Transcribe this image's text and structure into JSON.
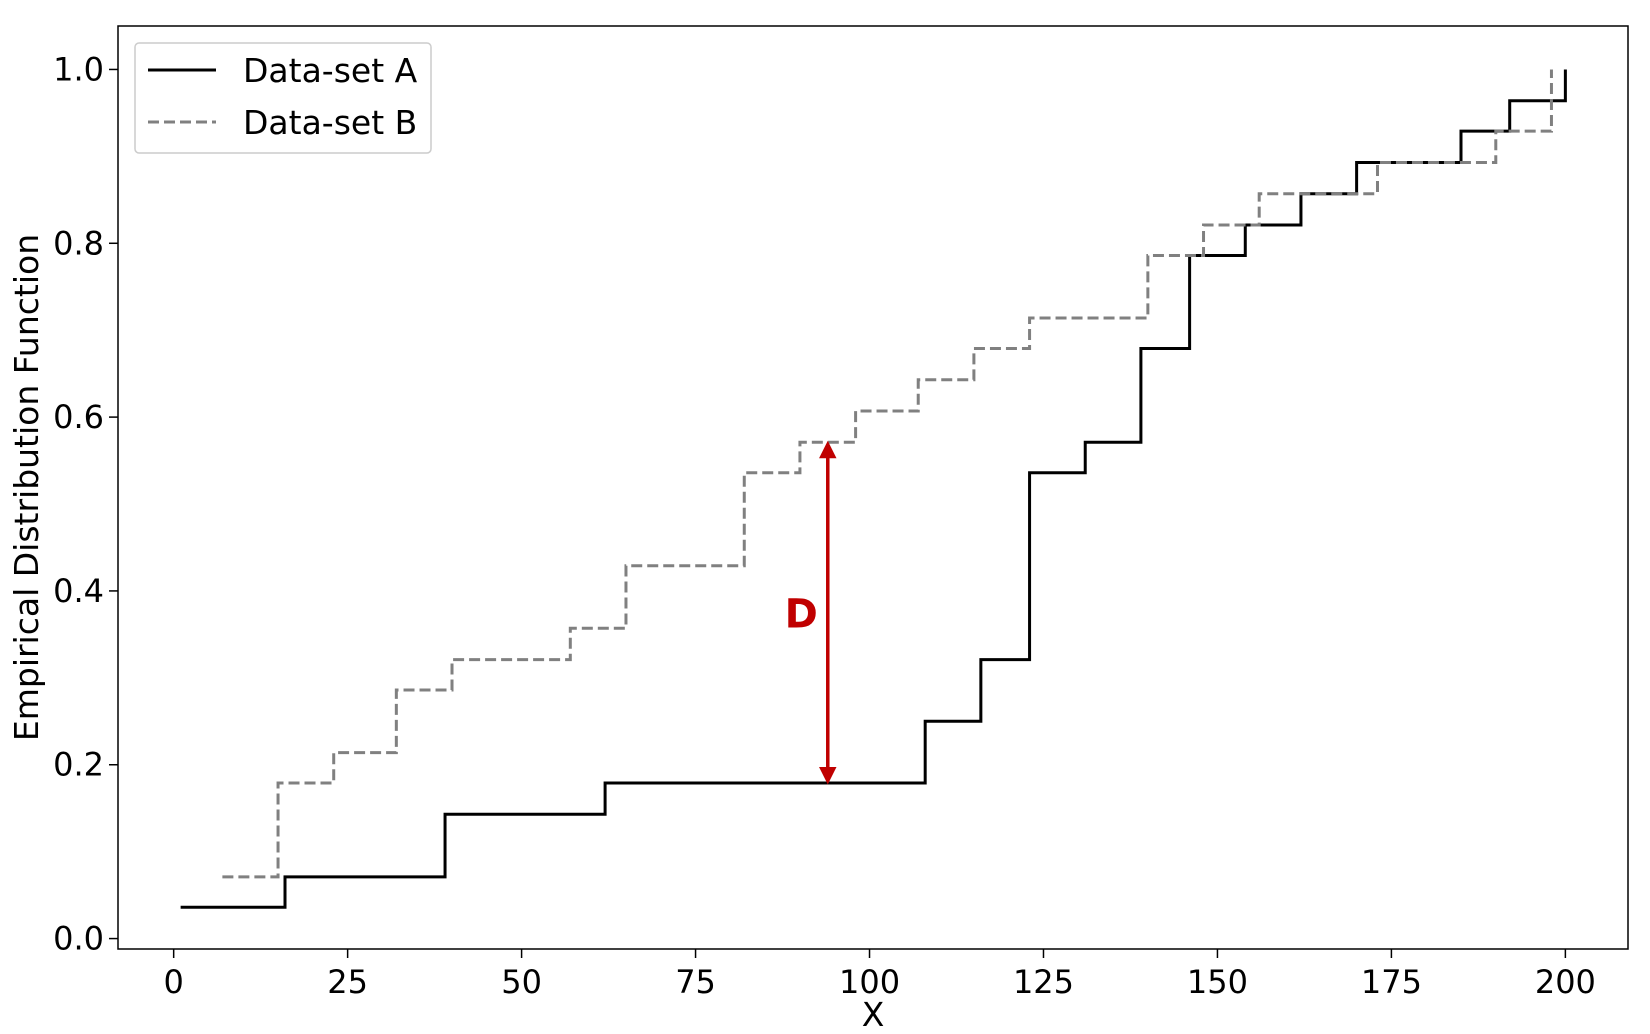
{
  "chart_data": {
    "type": "line",
    "step": "post",
    "xlabel": "X",
    "ylabel": "Empirical Distribution Function",
    "xlim": [
      -8,
      209
    ],
    "ylim": [
      -0.012,
      1.05
    ],
    "xticks": [
      0,
      25,
      50,
      75,
      100,
      125,
      150,
      175,
      200
    ],
    "yticks": [
      0.0,
      0.2,
      0.4,
      0.6,
      0.8,
      1.0
    ],
    "grid": false,
    "legend_position": "top-left",
    "series": [
      {
        "name": "Data-set A",
        "color": "#000000",
        "linestyle": "solid",
        "x": [
          1,
          16,
          39,
          62,
          108,
          116,
          123,
          131,
          139,
          146,
          154,
          162,
          170,
          185,
          192,
          200
        ],
        "y": [
          0.036,
          0.071,
          0.143,
          0.179,
          0.25,
          0.321,
          0.536,
          0.571,
          0.679,
          0.786,
          0.821,
          0.857,
          0.893,
          0.929,
          0.964,
          1.0
        ]
      },
      {
        "name": "Data-set B",
        "color": "#808080",
        "linestyle": "dashed",
        "x": [
          7,
          15,
          23,
          32,
          40,
          57,
          65,
          82,
          90,
          98,
          107,
          115,
          123,
          140,
          148,
          156,
          173,
          190,
          198
        ],
        "y": [
          0.071,
          0.179,
          0.214,
          0.286,
          0.321,
          0.357,
          0.429,
          0.536,
          0.571,
          0.607,
          0.643,
          0.679,
          0.714,
          0.786,
          0.821,
          0.857,
          0.893,
          0.929,
          1.0
        ]
      }
    ],
    "annotation": {
      "label": "D",
      "x": 94,
      "y_from": 0.179,
      "y_to": 0.571,
      "color": "#c00000"
    }
  }
}
